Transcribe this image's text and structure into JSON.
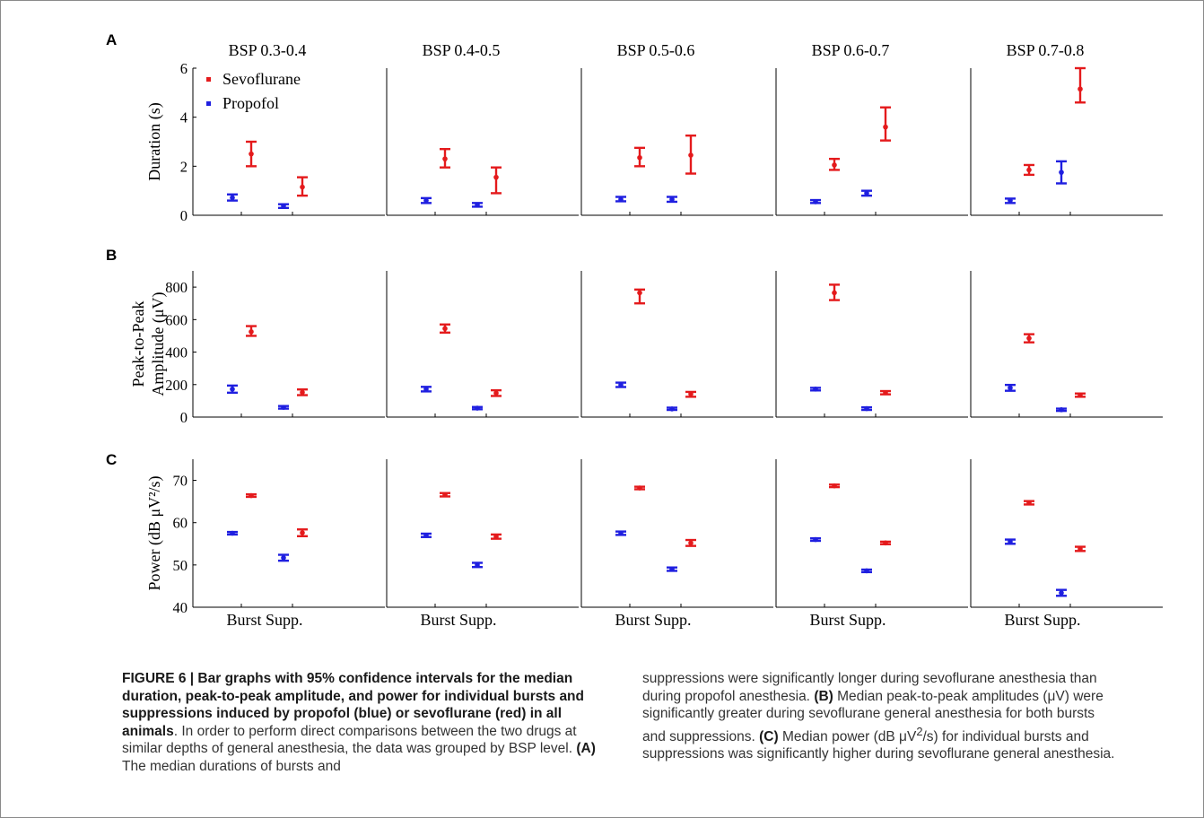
{
  "colors": {
    "sevoflurane": "#e41a1c",
    "propofol": "#1f1fe0"
  },
  "figure": {
    "legend": {
      "sevoflurane": "Sevoflurane",
      "propofol": "Propofol"
    },
    "columns": [
      "BSP 0.3-0.4",
      "BSP 0.4-0.5",
      "BSP 0.5-0.6",
      "BSP 0.6-0.7",
      "BSP 0.7-0.8"
    ],
    "xlabel": "Burst Supp.",
    "rows": [
      {
        "letter": "A",
        "ylabel": [
          "Duration (s)"
        ],
        "ylim": [
          0,
          6
        ],
        "ticks": [
          0,
          2,
          4,
          6
        ]
      },
      {
        "letter": "B",
        "ylabel": [
          "Peak-to-Peak",
          "Amplitude (μV)"
        ],
        "ylim": [
          0,
          900
        ],
        "ticks": [
          0,
          200,
          400,
          600,
          800
        ]
      },
      {
        "letter": "C",
        "ylabel": [
          "Power (dB μV²/s)"
        ],
        "ylim": [
          40,
          75
        ],
        "ticks": [
          40,
          50,
          60,
          70
        ]
      }
    ]
  },
  "chart_data": [
    {
      "type": "scatter",
      "panel": "A",
      "ylabel": "Duration (s)",
      "ylim": [
        0,
        6
      ],
      "columns": [
        "BSP 0.3-0.4",
        "BSP 0.4-0.5",
        "BSP 0.5-0.6",
        "BSP 0.6-0.7",
        "BSP 0.7-0.8"
      ],
      "categories": [
        "Burst",
        "Supp."
      ],
      "series": [
        {
          "name": "Propofol",
          "values": [
            [
              0.72,
              0.38
            ],
            [
              0.6,
              0.42
            ],
            [
              0.65,
              0.65
            ],
            [
              0.55,
              0.9
            ],
            [
              0.6,
              1.75
            ]
          ],
          "lower": [
            [
              0.6,
              0.3
            ],
            [
              0.5,
              0.35
            ],
            [
              0.57,
              0.55
            ],
            [
              0.5,
              0.8
            ],
            [
              0.5,
              1.3
            ]
          ],
          "upper": [
            [
              0.85,
              0.45
            ],
            [
              0.7,
              0.5
            ],
            [
              0.75,
              0.75
            ],
            [
              0.62,
              1.0
            ],
            [
              0.68,
              2.2
            ]
          ]
        },
        {
          "name": "Sevoflurane",
          "values": [
            [
              2.5,
              1.15
            ],
            [
              2.3,
              1.55
            ],
            [
              2.35,
              2.45
            ],
            [
              2.05,
              3.6
            ],
            [
              1.85,
              5.15
            ]
          ],
          "lower": [
            [
              2.0,
              0.8
            ],
            [
              1.95,
              0.9
            ],
            [
              2.0,
              1.7
            ],
            [
              1.85,
              3.05
            ],
            [
              1.65,
              4.6
            ]
          ],
          "upper": [
            [
              3.0,
              1.55
            ],
            [
              2.7,
              1.95
            ],
            [
              2.75,
              3.25
            ],
            [
              2.3,
              4.4
            ],
            [
              2.05,
              6.0
            ]
          ]
        }
      ]
    },
    {
      "type": "scatter",
      "panel": "B",
      "ylabel": "Peak-to-Peak Amplitude (μV)",
      "ylim": [
        0,
        900
      ],
      "columns": [
        "BSP 0.3-0.4",
        "BSP 0.4-0.5",
        "BSP 0.5-0.6",
        "BSP 0.6-0.7",
        "BSP 0.7-0.8"
      ],
      "categories": [
        "Burst",
        "Supp."
      ],
      "series": [
        {
          "name": "Propofol",
          "values": [
            [
              172,
              60
            ],
            [
              172,
              55
            ],
            [
              198,
              50
            ],
            [
              172,
              52
            ],
            [
              180,
              45
            ]
          ],
          "lower": [
            [
              150,
              52
            ],
            [
              158,
              48
            ],
            [
              185,
              44
            ],
            [
              164,
              44
            ],
            [
              162,
              38
            ]
          ],
          "upper": [
            [
              194,
              68
            ],
            [
              186,
              62
            ],
            [
              212,
              58
            ],
            [
              180,
              60
            ],
            [
              198,
              52
            ]
          ]
        },
        {
          "name": "Sevoflurane",
          "values": [
            [
              525,
              152
            ],
            [
              545,
              148
            ],
            [
              765,
              142
            ],
            [
              765,
              150
            ],
            [
              485,
              135
            ]
          ],
          "lower": [
            [
              500,
              135
            ],
            [
              520,
              130
            ],
            [
              700,
              125
            ],
            [
              720,
              140
            ],
            [
              460,
              125
            ]
          ],
          "upper": [
            [
              560,
              170
            ],
            [
              570,
              165
            ],
            [
              785,
              155
            ],
            [
              815,
              160
            ],
            [
              510,
              145
            ]
          ]
        }
      ]
    },
    {
      "type": "scatter",
      "panel": "C",
      "ylabel": "Power (dB μV²/s)",
      "ylim": [
        40,
        75
      ],
      "columns": [
        "BSP 0.3-0.4",
        "BSP 0.4-0.5",
        "BSP 0.5-0.6",
        "BSP 0.6-0.7",
        "BSP 0.7-0.8"
      ],
      "categories": [
        "Burst",
        "Supp."
      ],
      "series": [
        {
          "name": "Propofol",
          "values": [
            [
              57.5,
              51.7
            ],
            [
              57.0,
              50.0
            ],
            [
              57.5,
              49.0
            ],
            [
              56.0,
              48.6
            ],
            [
              55.5,
              43.4
            ]
          ],
          "lower": [
            [
              57.2,
              51.0
            ],
            [
              56.6,
              49.5
            ],
            [
              57.1,
              48.6
            ],
            [
              55.7,
              48.3
            ],
            [
              55.0,
              42.7
            ]
          ],
          "upper": [
            [
              57.8,
              52.4
            ],
            [
              57.4,
              50.5
            ],
            [
              57.9,
              49.4
            ],
            [
              56.3,
              48.9
            ],
            [
              56.0,
              44.1
            ]
          ]
        },
        {
          "name": "Sevoflurane",
          "values": [
            [
              66.4,
              57.6
            ],
            [
              66.6,
              56.7
            ],
            [
              68.2,
              55.2
            ],
            [
              68.7,
              55.2
            ],
            [
              64.7,
              53.8
            ]
          ],
          "lower": [
            [
              66.1,
              56.8
            ],
            [
              66.2,
              56.2
            ],
            [
              67.9,
              54.5
            ],
            [
              68.4,
              54.9
            ],
            [
              64.3,
              53.3
            ]
          ],
          "upper": [
            [
              66.7,
              58.4
            ],
            [
              67.0,
              57.2
            ],
            [
              68.5,
              55.9
            ],
            [
              69.0,
              55.5
            ],
            [
              65.1,
              54.3
            ]
          ]
        }
      ]
    }
  ],
  "caption": {
    "label": "FIGURE 6 | Bar graphs with 95% confidence intervals for the median duration, peak-to-peak amplitude, and power for individual bursts and suppressions induced by propofol (blue) or sevoflurane (red) in all animals",
    "text1": ". In order to perform direct comparisons between the two drugs at similar depths of general anesthesia, the data was grouped by BSP level. ",
    "refA": "(A)",
    "text2": " The median durations of bursts and suppressions were significantly longer during sevoflurane anesthesia than during propofol anesthesia. ",
    "refB": "(B)",
    "text3": " Median peak-to-peak amplitudes (μV) were significantly greater during sevoflurane general anesthesia for both bursts and suppressions. ",
    "refC": "(C)",
    "text4a": " Median power (dB μV",
    "text4sup": "2",
    "text4b": "/s) for individual bursts and suppressions was significantly higher during sevoflurane general anesthesia."
  }
}
